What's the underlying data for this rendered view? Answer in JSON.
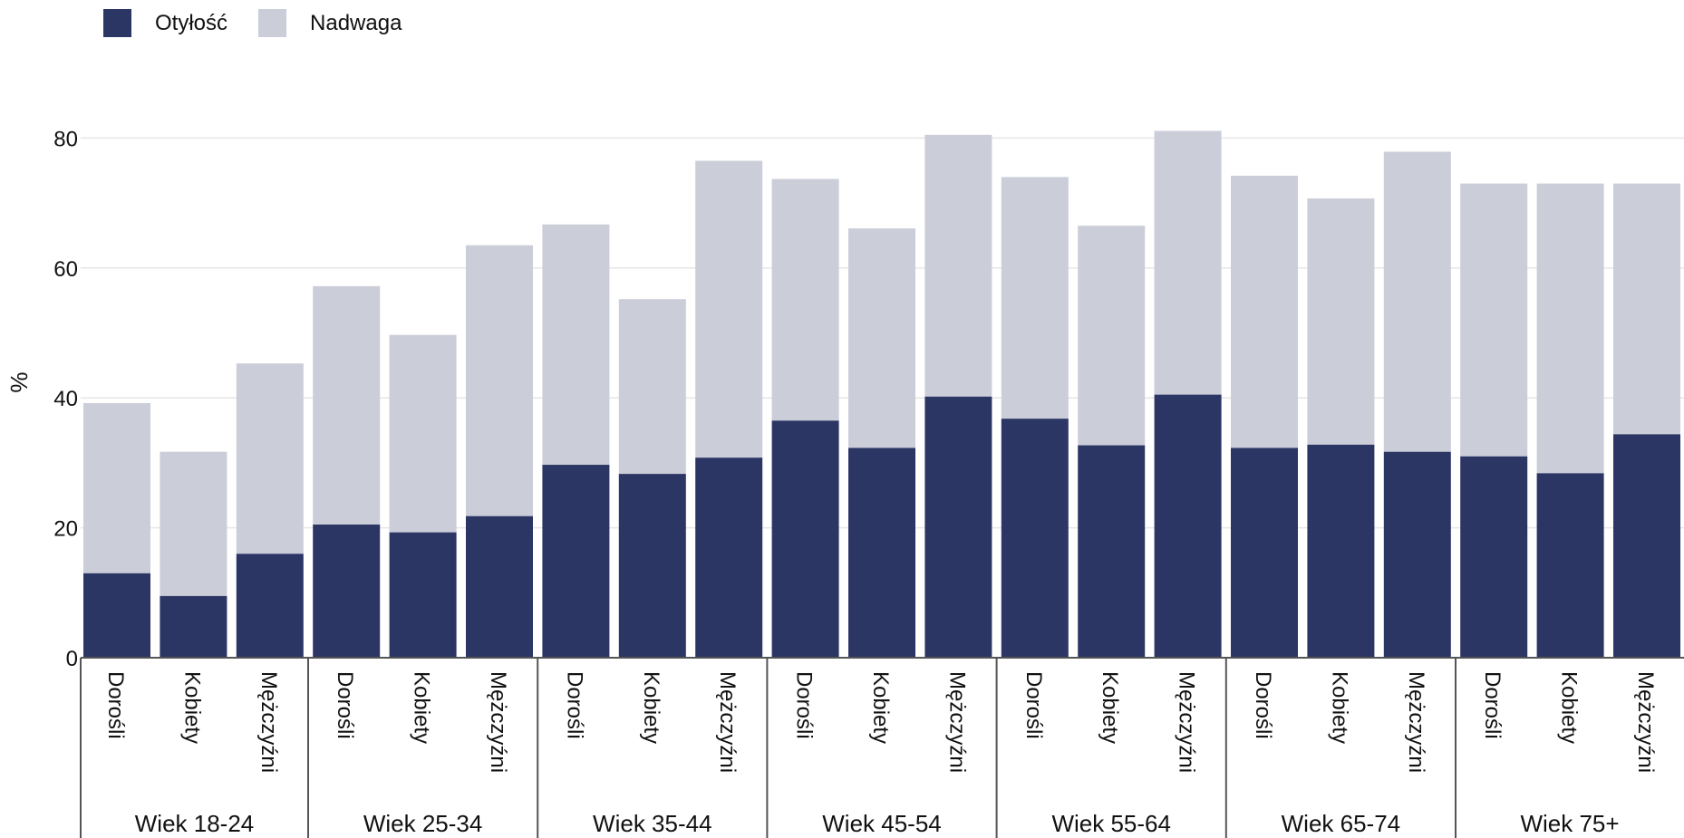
{
  "colors": {
    "obesity": "#2b3665",
    "overweight": "#cbcdd9",
    "grid": "#e6e6e6",
    "axis": "#555555"
  },
  "legend": {
    "obesity_label": "Otyłość",
    "overweight_label": "Nadwaga"
  },
  "chart_data": {
    "type": "bar",
    "stacked": true,
    "ylabel": "%",
    "ylim": [
      0,
      92
    ],
    "yticks": [
      0,
      20,
      40,
      60,
      80
    ],
    "grid": true,
    "legend_position": "top-left",
    "groups": [
      "Wiek 18-24",
      "Wiek 25-34",
      "Wiek 35-44",
      "Wiek 45-54",
      "Wiek 55-64",
      "Wiek 65-74",
      "Wiek 75+"
    ],
    "subcategories": [
      "Dorośli",
      "Kobiety",
      "Mężczyźni"
    ],
    "series": [
      {
        "name": "Otyłość",
        "values": [
          13.0,
          9.5,
          16.0,
          20.5,
          19.3,
          21.8,
          29.7,
          28.3,
          30.8,
          36.5,
          32.3,
          40.2,
          36.8,
          32.7,
          40.5,
          32.3,
          32.8,
          31.7,
          31.0,
          28.4,
          34.4
        ]
      },
      {
        "name": "Nadwaga",
        "values": [
          26.2,
          22.2,
          29.3,
          36.7,
          30.4,
          41.7,
          37.0,
          26.9,
          45.7,
          37.2,
          33.8,
          40.3,
          37.2,
          33.8,
          40.6,
          41.9,
          37.9,
          46.2,
          42.0,
          44.6,
          38.6
        ]
      }
    ]
  }
}
